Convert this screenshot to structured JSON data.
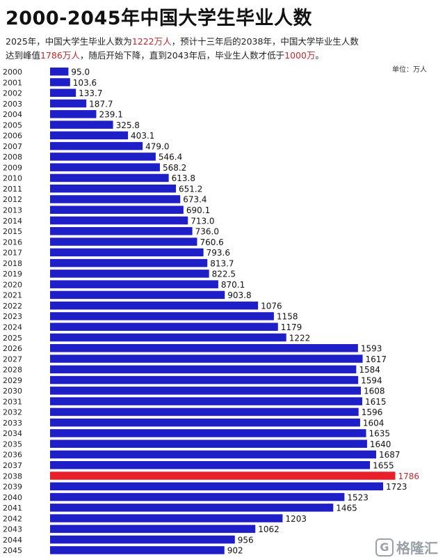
{
  "header": {
    "title": "2000-2045年中国大学生毕业人数",
    "sub1a": "2025年，中国大学生毕业人数为",
    "sub1b": "1222万人",
    "sub1c": "，预计十三年后的2038年，中国大学毕业生人数",
    "sub2a": "达到峰值",
    "sub2b": "1786万人",
    "sub2c": "，随后开始下降，直到2043年后，毕业生人数才低于",
    "sub2d": "1000万",
    "sub2e": "。",
    "unit": "单位：万人"
  },
  "colors": {
    "bar": "#1f1fc8",
    "highlight": "#e8202a",
    "highlight_text": "#c0282d"
  },
  "watermark": {
    "logo_glyph": "G",
    "text": "格隆汇"
  },
  "chart_data": {
    "type": "bar",
    "orientation": "horizontal",
    "title": "2000-2045年中国大学生毕业人数",
    "unit": "万人",
    "xlim": [
      0,
      1900
    ],
    "highlight_category": "2038",
    "categories": [
      "2000",
      "2001",
      "2002",
      "2003",
      "2004",
      "2005",
      "2006",
      "2007",
      "2008",
      "2009",
      "2010",
      "2011",
      "2012",
      "2013",
      "2014",
      "2015",
      "2016",
      "2017",
      "2018",
      "2019",
      "2020",
      "2021",
      "2022",
      "2023",
      "2024",
      "2025",
      "2026",
      "2027",
      "2028",
      "2029",
      "2030",
      "2031",
      "2032",
      "2033",
      "2034",
      "2035",
      "2036",
      "2037",
      "2038",
      "2039",
      "2040",
      "2041",
      "2042",
      "2043",
      "2044",
      "2045"
    ],
    "values": [
      95.0,
      103.6,
      133.7,
      187.7,
      239.1,
      325.8,
      403.1,
      479.0,
      546.4,
      568.2,
      613.8,
      651.2,
      673.4,
      690.1,
      713.0,
      736.0,
      760.6,
      793.6,
      813.7,
      822.5,
      870.1,
      903.8,
      1076,
      1158,
      1179,
      1222,
      1593,
      1617,
      1584,
      1594,
      1608,
      1615,
      1596,
      1604,
      1635,
      1640,
      1687,
      1655,
      1786,
      1723,
      1523,
      1465,
      1203,
      1062,
      956,
      902
    ],
    "labels": [
      "95.0",
      "103.6",
      "133.7",
      "187.7",
      "239.1",
      "325.8",
      "403.1",
      "479.0",
      "546.4",
      "568.2",
      "613.8",
      "651.2",
      "673.4",
      "690.1",
      "713.0",
      "736.0",
      "760.6",
      "793.6",
      "813.7",
      "822.5",
      "870.1",
      "903.8",
      "1076",
      "1158",
      "1179",
      "1222",
      "1593",
      "1617",
      "1584",
      "1594",
      "1608",
      "1615",
      "1596",
      "1604",
      "1635",
      "1640",
      "1687",
      "1655",
      "1786",
      "1723",
      "1523",
      "1465",
      "1203",
      "1062",
      "956",
      "902"
    ]
  }
}
